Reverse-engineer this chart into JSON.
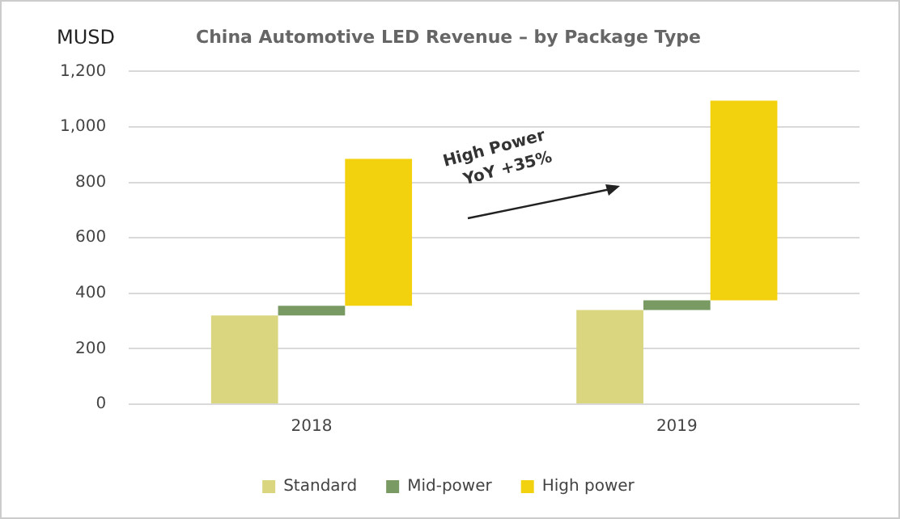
{
  "chart_data": {
    "type": "bar",
    "title": "China Automotive LED Revenue – by Package Type",
    "ylabel": "MUSD",
    "categories": [
      "2018",
      "2019"
    ],
    "series": [
      {
        "name": "Standard",
        "color": "#d9d67f",
        "values": [
          320,
          340
        ],
        "base": [
          0,
          0
        ]
      },
      {
        "name": "Mid-power",
        "color": "#7a9a64",
        "values": [
          35,
          35
        ],
        "base": [
          320,
          340
        ]
      },
      {
        "name": "High power",
        "color": "#f2d10f",
        "values": [
          530,
          720
        ],
        "base": [
          355,
          375
        ]
      }
    ],
    "annotations": [
      "High Power\nYoY +35%"
    ],
    "ylim": [
      0,
      1200
    ],
    "yticks": [
      0,
      200,
      400,
      600,
      800,
      {
        "value": 1000,
        "label": "1,000"
      },
      {
        "value": 1200,
        "label": "1,200"
      }
    ],
    "grid": "y",
    "legend": "bottom"
  }
}
